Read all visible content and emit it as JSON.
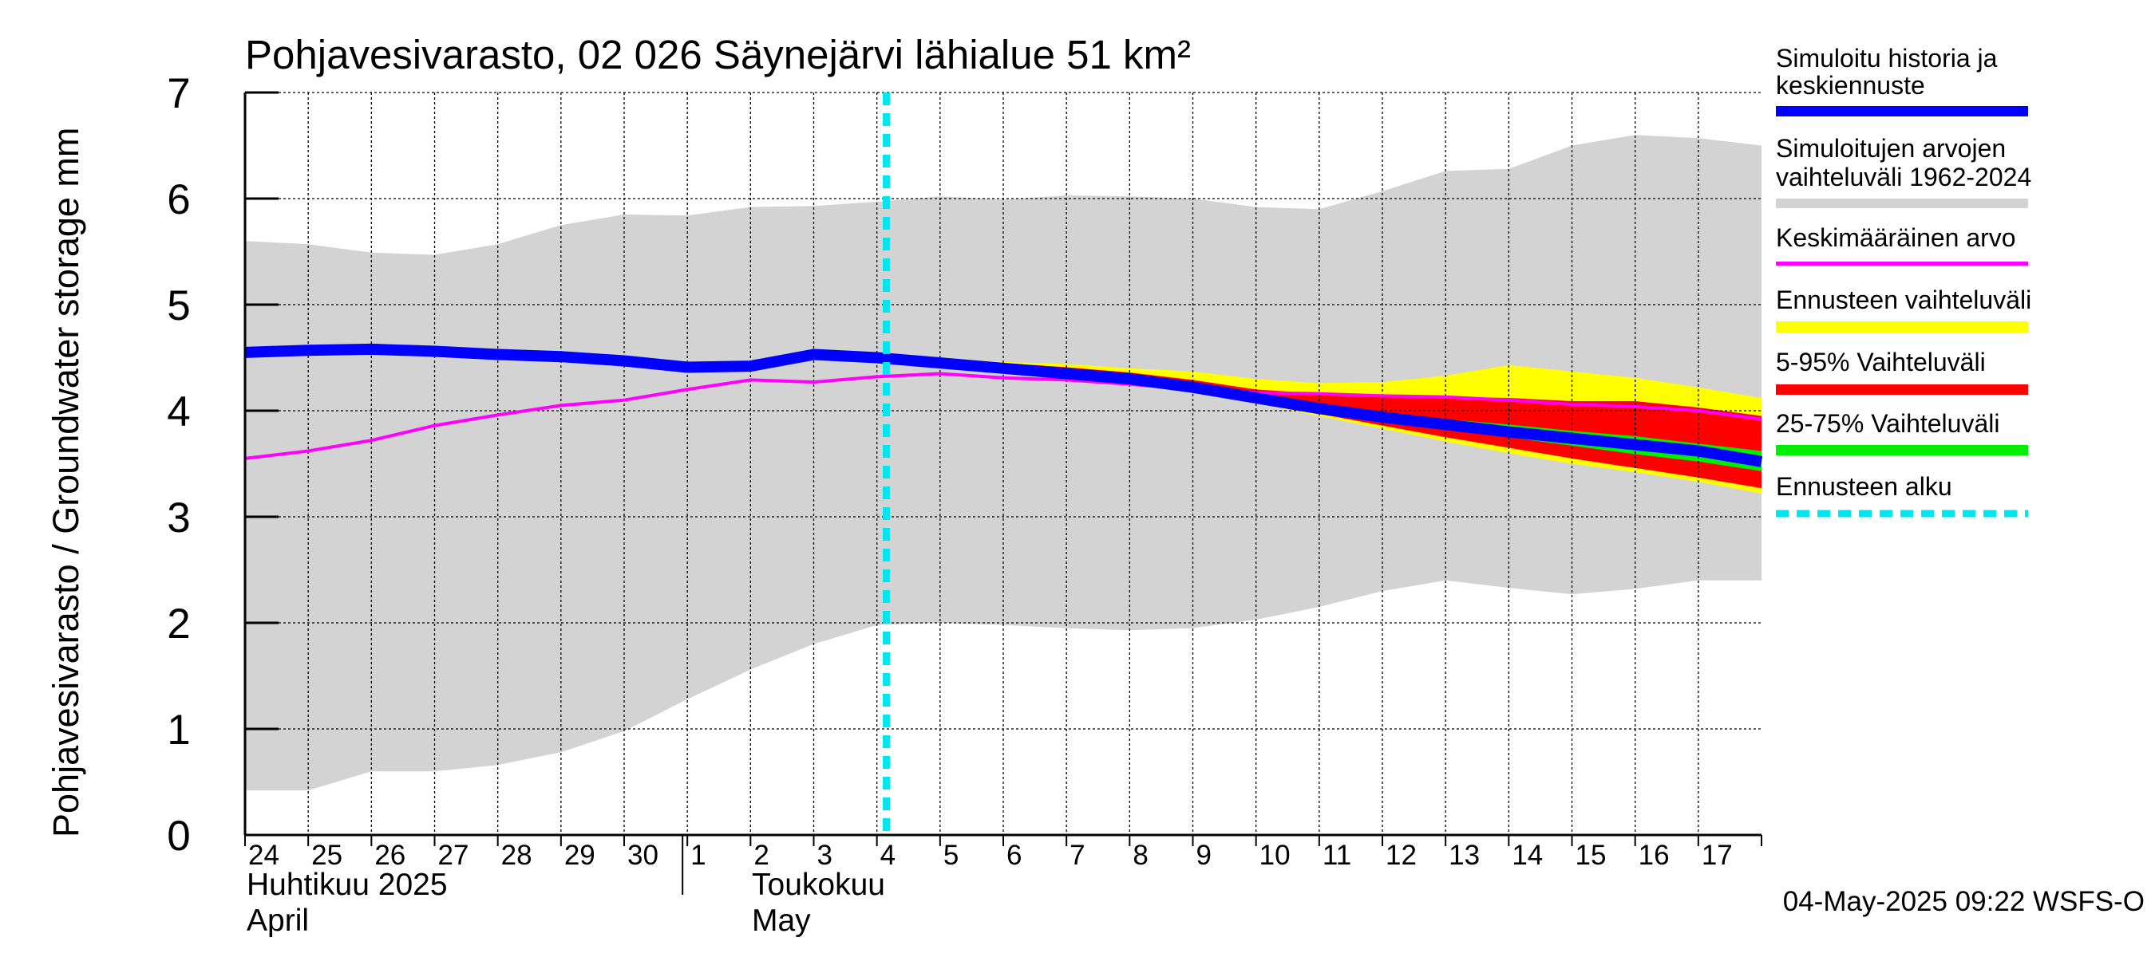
{
  "chart_data": {
    "type": "area",
    "title": "Pohjavesivarasto, 02 026 Säynejärvi lähialue 51 km²",
    "ylabel": "Pohjavesivarasto / Groundwater storage   mm",
    "ylim": [
      0,
      7
    ],
    "yticks": [
      0,
      1,
      2,
      3,
      4,
      5,
      6,
      7
    ],
    "x_day_labels": [
      "24",
      "25",
      "26",
      "27",
      "28",
      "29",
      "30",
      "1",
      "2",
      "3",
      "4",
      "5",
      "6",
      "7",
      "8",
      "9",
      "10",
      "11",
      "12",
      "13",
      "14",
      "15",
      "16",
      "17"
    ],
    "month_labels": [
      {
        "fi": "Huhtikuu  2025",
        "en": "April"
      },
      {
        "fi": "Toukokuu",
        "en": "May"
      }
    ],
    "timestamp": "04-May-2025 09:22 WSFS-O",
    "forecast_start_day": 10.15,
    "colors": {
      "history_range": "#d3d3d3",
      "median": "#0000ff",
      "mean": "#ff00ff",
      "forecast_range": "#ffff00",
      "range_5_95": "#ff0000",
      "range_25_75": "#00ee00",
      "forecast_start": "#00e5ee"
    },
    "legend": [
      {
        "label": "Simuloitu historia ja keskiennuste",
        "key": "median"
      },
      {
        "label": "Simuloitujen arvojen vaihteluväli 1962-2024",
        "key": "history_range"
      },
      {
        "label": "Keskimääräinen arvo",
        "key": "mean"
      },
      {
        "label": "Ennusteen vaihteluväli",
        "key": "forecast_range"
      },
      {
        "label": "5-95% Vaihteluväli",
        "key": "range_5_95"
      },
      {
        "label": "25-75% Vaihteluväli",
        "key": "range_25_75"
      },
      {
        "label": "Ennusteen alku",
        "key": "forecast_start"
      }
    ],
    "series": {
      "history_upper": {
        "x": [
          0,
          1,
          2,
          3,
          4,
          5,
          6,
          7,
          8,
          9,
          10,
          11,
          12,
          13,
          14,
          15,
          16,
          17,
          18,
          19,
          20,
          21,
          22,
          23,
          24
        ],
        "y": [
          5.6,
          5.57,
          5.49,
          5.47,
          5.57,
          5.75,
          5.85,
          5.84,
          5.92,
          5.93,
          5.97,
          6.02,
          5.99,
          6.03,
          6.02,
          6.0,
          5.92,
          5.9,
          6.07,
          6.26,
          6.28,
          6.5,
          6.6,
          6.57,
          6.5
        ]
      },
      "history_lower": {
        "x": [
          0,
          1,
          2,
          3,
          4,
          5,
          6,
          7,
          8,
          9,
          10,
          11,
          12,
          13,
          14,
          15,
          16,
          17,
          18,
          19,
          20,
          21,
          22,
          23,
          24
        ],
        "y": [
          0.42,
          0.42,
          0.6,
          0.6,
          0.66,
          0.78,
          0.98,
          1.28,
          1.56,
          1.8,
          1.98,
          2.0,
          1.98,
          1.95,
          1.93,
          1.95,
          2.03,
          2.15,
          2.3,
          2.4,
          2.33,
          2.27,
          2.32,
          2.4,
          2.4
        ]
      },
      "median": {
        "x": [
          0,
          1,
          2,
          3,
          4,
          5,
          6,
          7,
          8,
          9,
          10,
          11,
          12,
          13,
          14,
          15,
          16,
          17,
          18,
          19,
          20,
          21,
          22,
          23,
          24
        ],
        "y": [
          4.55,
          4.57,
          4.58,
          4.56,
          4.53,
          4.51,
          4.47,
          4.41,
          4.42,
          4.53,
          4.5,
          4.45,
          4.4,
          4.35,
          4.3,
          4.22,
          4.12,
          4.02,
          3.94,
          3.87,
          3.8,
          3.74,
          3.68,
          3.62,
          3.52
        ]
      },
      "mean": {
        "x": [
          0,
          1,
          2,
          3,
          4,
          5,
          6,
          7,
          8,
          9,
          10,
          11,
          12,
          13,
          14,
          15,
          16,
          17,
          18,
          19,
          20,
          21,
          22,
          23,
          24
        ],
        "y": [
          3.55,
          3.62,
          3.72,
          3.86,
          3.96,
          4.05,
          4.1,
          4.2,
          4.29,
          4.27,
          4.32,
          4.35,
          4.31,
          4.29,
          4.25,
          4.2,
          4.17,
          4.16,
          4.14,
          4.13,
          4.1,
          4.06,
          4.04,
          4.0,
          3.92
        ]
      },
      "forecast_upper": {
        "x": [
          10.15,
          11,
          12,
          13,
          14,
          15,
          16,
          17,
          18,
          19,
          20,
          21,
          22,
          23,
          24
        ],
        "y": [
          4.5,
          4.49,
          4.46,
          4.44,
          4.4,
          4.37,
          4.3,
          4.26,
          4.27,
          4.33,
          4.43,
          4.37,
          4.31,
          4.22,
          4.12
        ]
      },
      "forecast_lower": {
        "x": [
          10.15,
          11,
          12,
          13,
          14,
          15,
          16,
          17,
          18,
          19,
          20,
          21,
          22,
          23,
          24
        ],
        "y": [
          4.5,
          4.45,
          4.4,
          4.35,
          4.28,
          4.19,
          4.07,
          3.95,
          3.83,
          3.71,
          3.6,
          3.5,
          3.42,
          3.33,
          3.22
        ]
      },
      "p95": {
        "x": [
          10.15,
          11,
          12,
          13,
          14,
          15,
          16,
          17,
          18,
          19,
          20,
          21,
          22,
          23,
          24
        ],
        "y": [
          4.5,
          4.48,
          4.45,
          4.41,
          4.36,
          4.29,
          4.2,
          4.16,
          4.14,
          4.13,
          4.12,
          4.09,
          4.09,
          4.03,
          3.95
        ]
      },
      "p5": {
        "x": [
          10.15,
          11,
          12,
          13,
          14,
          15,
          16,
          17,
          18,
          19,
          20,
          21,
          22,
          23,
          24
        ],
        "y": [
          4.5,
          4.46,
          4.41,
          4.36,
          4.29,
          4.2,
          4.08,
          3.97,
          3.86,
          3.75,
          3.65,
          3.55,
          3.46,
          3.37,
          3.27
        ]
      },
      "p75": {
        "x": [
          10.15,
          11,
          12,
          13,
          14,
          15,
          16,
          17,
          18,
          19,
          20,
          21,
          22,
          23,
          24
        ],
        "y": [
          4.5,
          4.46,
          4.42,
          4.37,
          4.32,
          4.24,
          4.15,
          4.05,
          3.98,
          3.92,
          3.87,
          3.81,
          3.76,
          3.69,
          3.62
        ]
      },
      "p25": {
        "x": [
          10.15,
          11,
          12,
          13,
          14,
          15,
          16,
          17,
          18,
          19,
          20,
          21,
          22,
          23,
          24
        ],
        "y": [
          4.5,
          4.45,
          4.4,
          4.35,
          4.29,
          4.2,
          4.1,
          4.0,
          3.91,
          3.83,
          3.75,
          3.67,
          3.59,
          3.52,
          3.43
        ]
      }
    }
  }
}
